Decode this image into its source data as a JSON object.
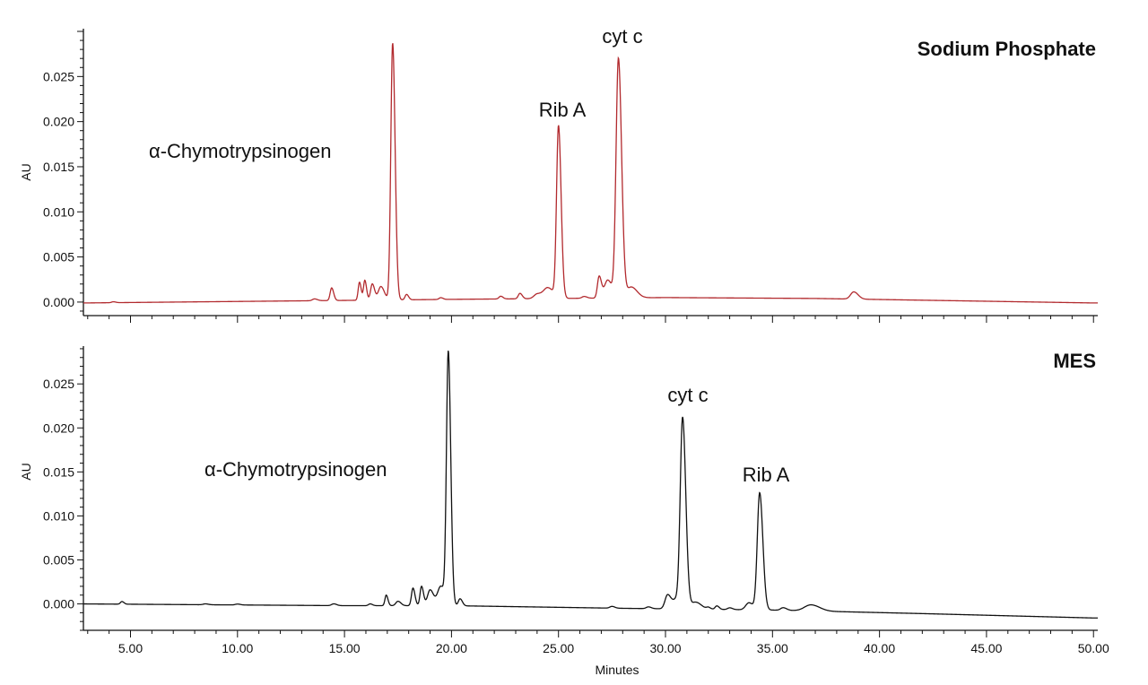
{
  "chart_data": [
    {
      "type": "line",
      "title": "Sodium Phosphate",
      "xlabel": "",
      "ylabel": "AU",
      "xlim": [
        2.8,
        50.2
      ],
      "ylim": [
        -0.0015,
        0.0303
      ],
      "x_ticks": [
        5,
        10,
        15,
        20,
        25,
        30,
        35,
        40,
        45,
        50
      ],
      "y_ticks": [
        0.0,
        0.005,
        0.01,
        0.015,
        0.02,
        0.025
      ],
      "y_tick_labels": [
        "0.000",
        "0.005",
        "0.010",
        "0.015",
        "0.020",
        "0.025"
      ],
      "color": "#b22a2e",
      "baseline": [
        [
          2.8,
          -0.0001
        ],
        [
          20,
          0.0003
        ],
        [
          30,
          0.0005
        ],
        [
          37,
          0.0004
        ],
        [
          50,
          -0.0001
        ]
      ],
      "peaks": [
        {
          "x": 4.2,
          "height": 0.0001,
          "width": 0.08
        },
        {
          "x": 13.6,
          "height": 0.0002,
          "width": 0.1
        },
        {
          "x": 14.4,
          "height": 0.0014,
          "width": 0.07
        },
        {
          "x": 15.7,
          "height": 0.002,
          "width": 0.06
        },
        {
          "x": 15.95,
          "height": 0.0022,
          "width": 0.06
        },
        {
          "x": 16.3,
          "height": 0.0018,
          "width": 0.08
        },
        {
          "x": 16.7,
          "height": 0.0015,
          "width": 0.12
        },
        {
          "x": 17.25,
          "height": 0.0285,
          "width": 0.085
        },
        {
          "x": 17.9,
          "height": 0.0006,
          "width": 0.07
        },
        {
          "x": 19.5,
          "height": 0.0002,
          "width": 0.08
        },
        {
          "x": 22.3,
          "height": 0.0003,
          "width": 0.08
        },
        {
          "x": 23.2,
          "height": 0.0006,
          "width": 0.08
        },
        {
          "x": 24.0,
          "height": 0.0005,
          "width": 0.15
        },
        {
          "x": 24.5,
          "height": 0.0012,
          "width": 0.2
        },
        {
          "x": 25.0,
          "height": 0.019,
          "width": 0.09
        },
        {
          "x": 26.2,
          "height": 0.0002,
          "width": 0.1
        },
        {
          "x": 26.9,
          "height": 0.0024,
          "width": 0.08
        },
        {
          "x": 27.3,
          "height": 0.002,
          "width": 0.15
        },
        {
          "x": 27.8,
          "height": 0.0265,
          "width": 0.11
        },
        {
          "x": 28.4,
          "height": 0.0012,
          "width": 0.2
        },
        {
          "x": 38.8,
          "height": 0.0008,
          "width": 0.15
        }
      ],
      "annotations": [
        {
          "text": "α-Chymotrypsinogen",
          "x": 17.25,
          "y": 0.0285
        },
        {
          "text": "Rib A",
          "x": 25.0,
          "y": 0.019
        },
        {
          "text": "cyt c",
          "x": 27.8,
          "y": 0.0265
        }
      ]
    },
    {
      "type": "line",
      "title": "MES",
      "xlabel": "Minutes",
      "ylabel": "AU",
      "xlim": [
        2.8,
        50.2
      ],
      "ylim": [
        -0.003,
        0.0293
      ],
      "x_ticks": [
        5,
        10,
        15,
        20,
        25,
        30,
        35,
        40,
        45,
        50
      ],
      "x_tick_labels": [
        "5.00",
        "10.00",
        "15.00",
        "20.00",
        "25.00",
        "30.00",
        "35.00",
        "40.00",
        "45.00",
        "50.00"
      ],
      "y_ticks": [
        0.0,
        0.005,
        0.01,
        0.015,
        0.02,
        0.025
      ],
      "y_tick_labels": [
        "0.000",
        "0.005",
        "0.010",
        "0.015",
        "0.020",
        "0.025"
      ],
      "color": "#111111",
      "baseline": [
        [
          2.8,
          0.0
        ],
        [
          15,
          -0.0002
        ],
        [
          20,
          -0.0002
        ],
        [
          28,
          -0.0005
        ],
        [
          35,
          -0.0007
        ],
        [
          42,
          -0.0011
        ],
        [
          50,
          -0.0016
        ]
      ],
      "peaks": [
        {
          "x": 4.6,
          "height": 0.0003,
          "width": 0.07
        },
        {
          "x": 8.5,
          "height": 0.0001,
          "width": 0.1
        },
        {
          "x": 10.0,
          "height": 0.0001,
          "width": 0.1
        },
        {
          "x": 14.5,
          "height": 0.0002,
          "width": 0.1
        },
        {
          "x": 16.2,
          "height": 0.0002,
          "width": 0.08
        },
        {
          "x": 16.95,
          "height": 0.0012,
          "width": 0.06
        },
        {
          "x": 17.5,
          "height": 0.0005,
          "width": 0.1
        },
        {
          "x": 18.2,
          "height": 0.002,
          "width": 0.07
        },
        {
          "x": 18.6,
          "height": 0.0022,
          "width": 0.07
        },
        {
          "x": 19.0,
          "height": 0.0018,
          "width": 0.12
        },
        {
          "x": 19.5,
          "height": 0.0022,
          "width": 0.15
        },
        {
          "x": 19.85,
          "height": 0.0285,
          "width": 0.085
        },
        {
          "x": 20.4,
          "height": 0.0008,
          "width": 0.08
        },
        {
          "x": 27.5,
          "height": 0.0002,
          "width": 0.1
        },
        {
          "x": 29.2,
          "height": 0.0002,
          "width": 0.1
        },
        {
          "x": 30.1,
          "height": 0.0016,
          "width": 0.12
        },
        {
          "x": 30.5,
          "height": 0.001,
          "width": 0.15
        },
        {
          "x": 30.8,
          "height": 0.0215,
          "width": 0.11
        },
        {
          "x": 31.4,
          "height": 0.0008,
          "width": 0.2
        },
        {
          "x": 32.0,
          "height": 0.0002,
          "width": 0.08
        },
        {
          "x": 32.4,
          "height": 0.0004,
          "width": 0.08
        },
        {
          "x": 33.0,
          "height": 0.0002,
          "width": 0.1
        },
        {
          "x": 33.9,
          "height": 0.0008,
          "width": 0.15
        },
        {
          "x": 34.4,
          "height": 0.0133,
          "width": 0.11
        },
        {
          "x": 35.5,
          "height": 0.0003,
          "width": 0.12
        },
        {
          "x": 36.8,
          "height": 0.0007,
          "width": 0.3
        }
      ],
      "annotations": [
        {
          "text": "α-Chymotrypsinogen",
          "x": 19.85,
          "y": 0.0285
        },
        {
          "text": "cyt c",
          "x": 30.8,
          "y": 0.0215
        },
        {
          "text": "Rib A",
          "x": 34.4,
          "y": 0.0133
        }
      ]
    }
  ]
}
